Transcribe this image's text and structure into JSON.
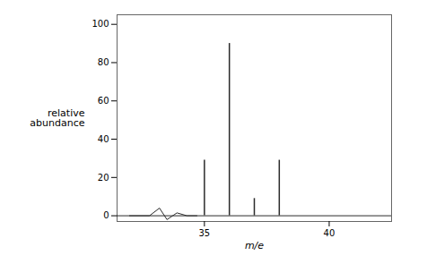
{
  "chart_data": {
    "type": "stem",
    "xlabel": "m/e",
    "ylabel": "relative\nabundance",
    "xlim": [
      31.5,
      42.5
    ],
    "ylim": [
      -3,
      105
    ],
    "xticks": [
      35,
      40
    ],
    "yticks": [
      0,
      20,
      40,
      60,
      80,
      100
    ],
    "series": [
      {
        "type": "stem",
        "color": "#2a2a2a",
        "x": [
          35,
          36,
          37,
          38
        ],
        "values": [
          29,
          90,
          9,
          29
        ]
      },
      {
        "type": "line",
        "color": "#2a2a2a",
        "x": [
          32.0,
          32.8,
          33.2,
          33.5,
          33.9,
          34.3,
          34.7
        ],
        "values": [
          0.0,
          0.0,
          4.0,
          -2.0,
          1.5,
          0.0,
          0.0
        ]
      }
    ]
  }
}
